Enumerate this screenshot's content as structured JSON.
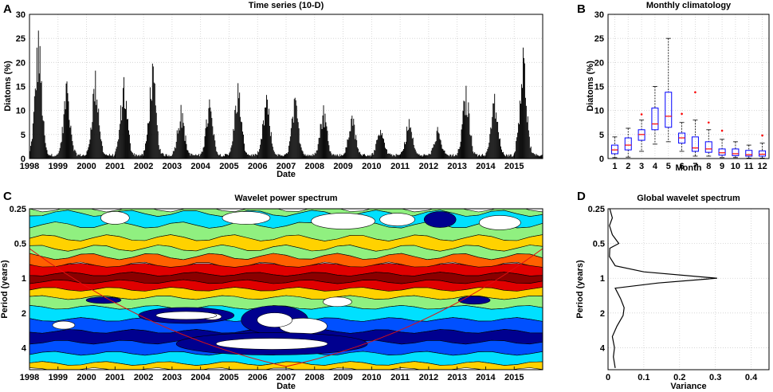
{
  "chart_data": [
    {
      "panel": "A",
      "type": "bar",
      "title": "Time series (10-D)",
      "xlabel": "Date",
      "ylabel": "Diatoms (%)",
      "xlim": [
        1998,
        2016
      ],
      "ylim": [
        0,
        30
      ],
      "xticks": [
        "1998",
        "1999",
        "2000",
        "2001",
        "2002",
        "2003",
        "2004",
        "2005",
        "2006",
        "2007",
        "2008",
        "2009",
        "2010",
        "2011",
        "2012",
        "2013",
        "2014",
        "2015"
      ],
      "yticks": [
        "0",
        "5",
        "10",
        "15",
        "20",
        "25",
        "30"
      ],
      "grid": true,
      "annual_peaks": [
        {
          "year": 1998,
          "peak": 26.0
        },
        {
          "year": 1999,
          "peak": 15.3
        },
        {
          "year": 2000,
          "peak": 17.7
        },
        {
          "year": 2001,
          "peak": 16.0
        },
        {
          "year": 2002,
          "peak": 19.0
        },
        {
          "year": 2003,
          "peak": 10.5
        },
        {
          "year": 2004,
          "peak": 11.5
        },
        {
          "year": 2005,
          "peak": 15.2
        },
        {
          "year": 2006,
          "peak": 12.3
        },
        {
          "year": 2007,
          "peak": 12.0
        },
        {
          "year": 2008,
          "peak": 10.6
        },
        {
          "year": 2009,
          "peak": 8.5
        },
        {
          "year": 2010,
          "peak": 5.5
        },
        {
          "year": 2011,
          "peak": 7.5
        },
        {
          "year": 2012,
          "peak": 6.0
        },
        {
          "year": 2013,
          "peak": 14.6
        },
        {
          "year": 2014,
          "peak": 12.5
        },
        {
          "year": 2015,
          "peak": 22.6
        }
      ]
    },
    {
      "panel": "B",
      "type": "box",
      "title": "Monthly climatology",
      "xlabel": "Month",
      "ylabel": "Diatoms (%)",
      "ylim": [
        0,
        30
      ],
      "categories": [
        "1",
        "2",
        "3",
        "4",
        "5",
        "6",
        "7",
        "8",
        "9",
        "10",
        "11",
        "12"
      ],
      "yticks": [
        "0",
        "5",
        "10",
        "15",
        "20",
        "25",
        "30"
      ],
      "boxes": [
        {
          "min": 0.2,
          "q1": 1.0,
          "median": 1.8,
          "q3": 2.8,
          "max": 4.5,
          "outliers": []
        },
        {
          "min": 0.3,
          "q1": 1.8,
          "median": 2.8,
          "q3": 4.3,
          "max": 6.3,
          "outliers": []
        },
        {
          "min": 1.5,
          "q1": 3.8,
          "median": 5.0,
          "q3": 6.0,
          "max": 8.0,
          "outliers": [
            9.2
          ]
        },
        {
          "min": 3.0,
          "q1": 6.0,
          "median": 7.2,
          "q3": 10.5,
          "max": 15.0,
          "outliers": []
        },
        {
          "min": 3.5,
          "q1": 6.5,
          "median": 8.8,
          "q3": 13.8,
          "max": 25.0,
          "outliers": []
        },
        {
          "min": 1.5,
          "q1": 3.2,
          "median": 4.3,
          "q3": 5.3,
          "max": 7.5,
          "outliers": [
            9.3
          ]
        },
        {
          "min": 0.5,
          "q1": 1.5,
          "median": 2.2,
          "q3": 4.5,
          "max": 8.0,
          "outliers": [
            13.8
          ]
        },
        {
          "min": 0.5,
          "q1": 1.3,
          "median": 2.0,
          "q3": 3.5,
          "max": 6.0,
          "outliers": [
            7.5
          ]
        },
        {
          "min": 0.2,
          "q1": 0.7,
          "median": 1.2,
          "q3": 2.0,
          "max": 4.0,
          "outliers": [
            5.8
          ]
        },
        {
          "min": 0.2,
          "q1": 0.6,
          "median": 1.0,
          "q3": 2.0,
          "max": 3.5,
          "outliers": []
        },
        {
          "min": 0.1,
          "q1": 0.5,
          "median": 0.8,
          "q3": 1.7,
          "max": 2.8,
          "outliers": []
        },
        {
          "min": 0.1,
          "q1": 0.5,
          "median": 0.9,
          "q3": 1.6,
          "max": 3.2,
          "outliers": [
            4.8
          ]
        }
      ]
    },
    {
      "panel": "C",
      "type": "heatmap",
      "title": "Wavelet power spectrum",
      "xlabel": "Date",
      "ylabel": "Period (years)",
      "xticks": [
        "1998",
        "1999",
        "2000",
        "2001",
        "2002",
        "2003",
        "2004",
        "2005",
        "2006",
        "2007",
        "2008",
        "2009",
        "2010",
        "2011",
        "2012",
        "2013",
        "2014",
        "2015"
      ],
      "yticks": [
        "0.25",
        "0.5",
        "1",
        "2",
        "4"
      ],
      "yscale": "log2",
      "ylim": [
        0.25,
        6.2
      ],
      "levels_colors": [
        "#ffffff",
        "#00008f",
        "#0050ff",
        "#00e0ff",
        "#90f080",
        "#ffd200",
        "#ff6000",
        "#e00000",
        "#8a0000"
      ],
      "bands": [
        {
          "period": 0.25,
          "level": 4
        },
        {
          "period": 0.3,
          "level": 3
        },
        {
          "period": 0.4,
          "level": 4
        },
        {
          "period": 0.5,
          "level": 5
        },
        {
          "period": 0.6,
          "level": 4
        },
        {
          "period": 0.7,
          "level": 6
        },
        {
          "period": 0.85,
          "level": 7
        },
        {
          "period": 1.0,
          "level": 8
        },
        {
          "period": 1.15,
          "level": 7
        },
        {
          "period": 1.35,
          "level": 5
        },
        {
          "period": 1.6,
          "level": 4
        },
        {
          "period": 2.0,
          "level": 3
        },
        {
          "period": 2.6,
          "level": 2
        },
        {
          "period": 3.2,
          "level": 1
        },
        {
          "period": 4.0,
          "level": 2
        },
        {
          "period": 5.0,
          "level": 3
        },
        {
          "period": 6.0,
          "level": 5
        }
      ],
      "cone_of_influence": true
    },
    {
      "panel": "D",
      "type": "line",
      "title": "Global wavelet spectrum",
      "xlabel": "Variance",
      "ylabel": "Period (years)",
      "xlim": [
        0,
        0.45
      ],
      "xticks": [
        "0",
        "0.1",
        "0.2",
        "0.3",
        "0.4"
      ],
      "yticks": [
        "0.25",
        "0.5",
        "1",
        "2",
        "4"
      ],
      "yscale": "log2",
      "grid": true,
      "points": [
        {
          "period": 0.25,
          "variance": 0.005
        },
        {
          "period": 0.3,
          "variance": 0.012
        },
        {
          "period": 0.35,
          "variance": 0.004
        },
        {
          "period": 0.42,
          "variance": 0.012
        },
        {
          "period": 0.5,
          "variance": 0.03
        },
        {
          "period": 0.55,
          "variance": 0.005
        },
        {
          "period": 0.65,
          "variance": 0.004
        },
        {
          "period": 0.78,
          "variance": 0.02
        },
        {
          "period": 0.88,
          "variance": 0.1
        },
        {
          "period": 1.0,
          "variance": 0.305
        },
        {
          "period": 1.1,
          "variance": 0.14
        },
        {
          "period": 1.22,
          "variance": 0.02
        },
        {
          "period": 1.5,
          "variance": 0.035
        },
        {
          "period": 1.8,
          "variance": 0.045
        },
        {
          "period": 2.1,
          "variance": 0.042
        },
        {
          "period": 2.6,
          "variance": 0.025
        },
        {
          "period": 3.2,
          "variance": 0.012
        },
        {
          "period": 4.0,
          "variance": 0.018
        },
        {
          "period": 4.8,
          "variance": 0.015
        },
        {
          "period": 6.0,
          "variance": 0.02
        }
      ]
    }
  ],
  "panel_letters": [
    "A",
    "B",
    "C",
    "D"
  ],
  "colors": {
    "bar": "#000000",
    "box": "#0000ff",
    "median": "#ff0000",
    "coi": "#e01010",
    "grid": "#cccccc"
  }
}
